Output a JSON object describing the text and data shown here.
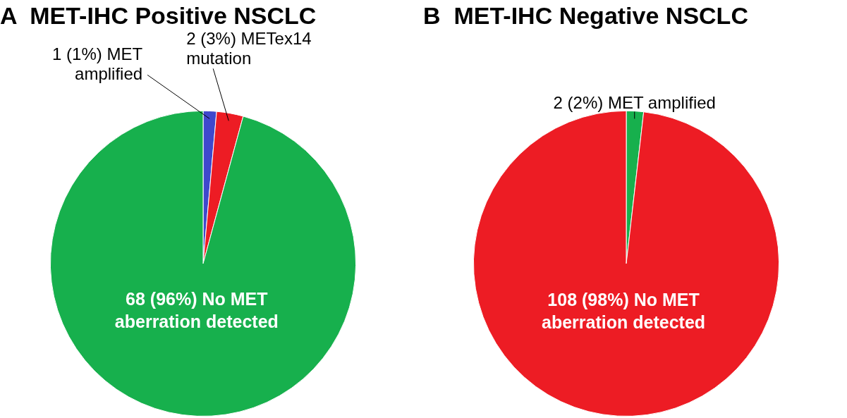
{
  "chart_data": [
    {
      "type": "pie",
      "title": "A  MET-IHC Positive NSCLC",
      "categories": [
        "1 (1%) MET amplified",
        "2 (3%) METex14 mutation",
        "68 (96%) No MET aberration detected"
      ],
      "values": [
        1,
        2,
        68
      ],
      "colors": [
        "#3f48cc",
        "#ed1c24",
        "#17b04d"
      ]
    },
    {
      "type": "pie",
      "title": "B  MET-IHC Negative NSCLC",
      "categories": [
        "2 (2%) MET amplified",
        "108 (98%) No MET aberration detected"
      ],
      "values": [
        2,
        108
      ],
      "colors": [
        "#17b04d",
        "#ed1c24"
      ]
    }
  ]
}
